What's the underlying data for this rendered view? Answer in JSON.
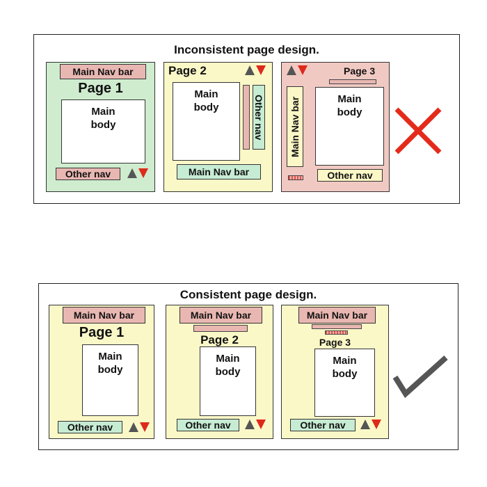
{
  "top": {
    "title": "Inconsistent page design.",
    "page1": {
      "nav": "Main Nav bar",
      "label": "Page 1",
      "body": "Main\nbody",
      "other": "Other nav"
    },
    "page2": {
      "label": "Page 2",
      "body": "Main\nbody",
      "other": "Other nav",
      "nav": "Main Nav bar"
    },
    "page3": {
      "label": "Page 3",
      "vnav": "Main Nav bar",
      "body": "Main\nbody",
      "other": "Other nav"
    },
    "verdict_icon": "cross-icon"
  },
  "bottom": {
    "title": "Consistent page design.",
    "page1": {
      "nav": "Main Nav bar",
      "label": "Page 1",
      "body": "Main\nbody",
      "other": "Other nav"
    },
    "page2": {
      "nav": "Main Nav bar",
      "label": "Page 2",
      "body": "Main\nbody",
      "other": "Other nav"
    },
    "page3": {
      "nav": "Main Nav bar",
      "label": "Page 3",
      "body": "Main\nbody",
      "other": "Other nav"
    },
    "verdict_icon": "check-icon"
  },
  "colors": {
    "green_page": "#cfeccf",
    "yellow_page": "#fbf8c8",
    "pink_page": "#f1c9c3",
    "nav_pink": "#e9b7b2",
    "arrow_up": "#555555",
    "arrow_down": "#dd2a1b",
    "cross": "#e42b1b",
    "check": "#555555"
  }
}
